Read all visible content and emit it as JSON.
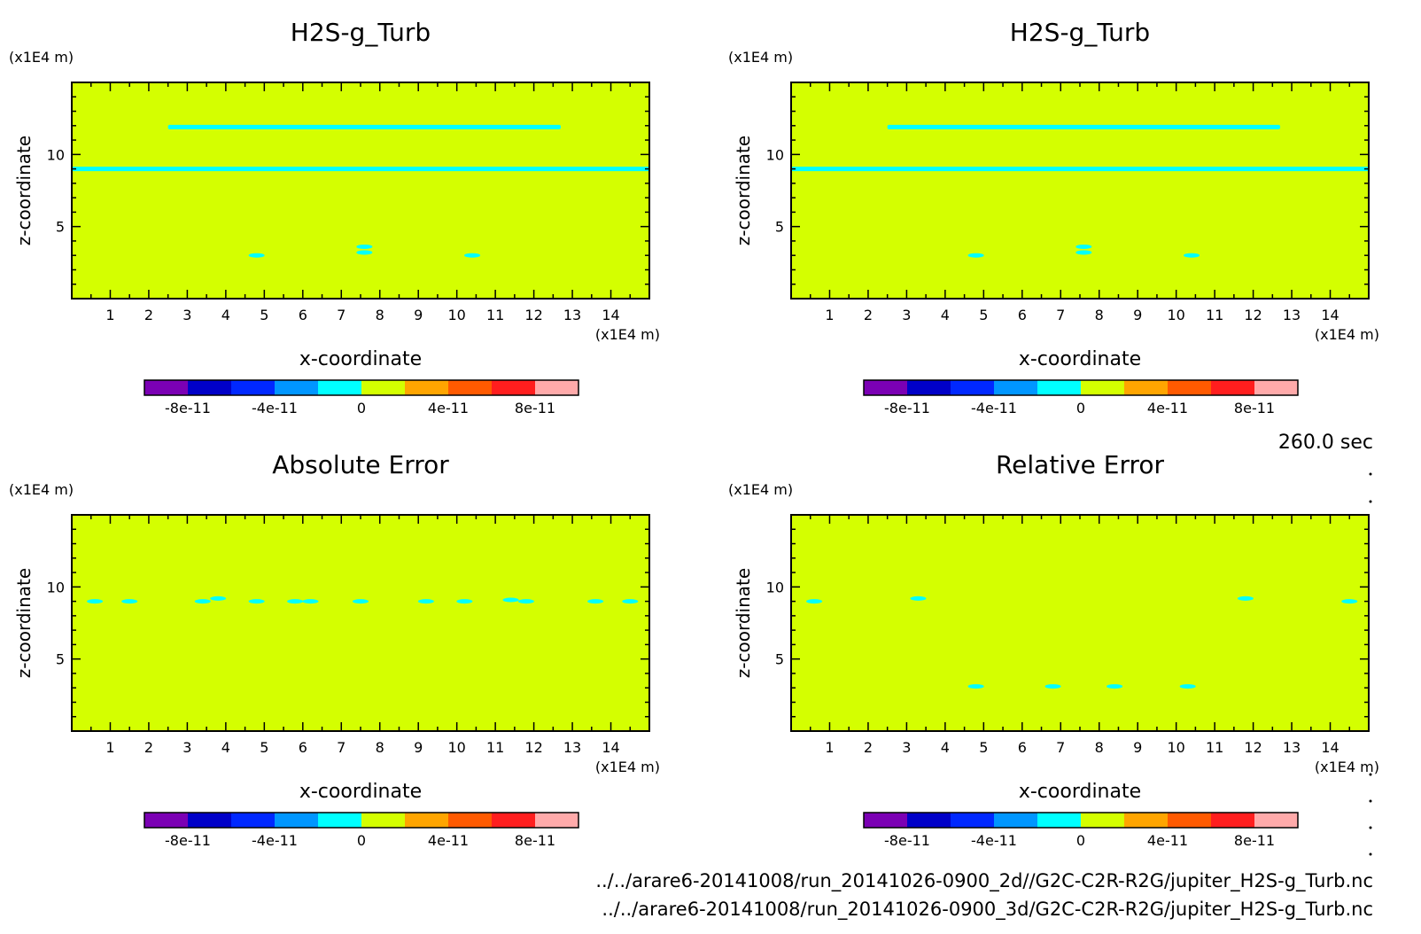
{
  "time_label": "260.0 sec",
  "footer": {
    "line1": "../../arare6-20141008/run_20141026-0900_2d//G2C-C2R-R2G/jupiter_H2S-g_Turb.nc",
    "line2": "../../arare6-20141008/run_20141026-0900_3d/G2C-C2R-R2G/jupiter_H2S-g_Turb.nc"
  },
  "colors": {
    "background_field": "#d4ff00",
    "contour": "#00ffff"
  },
  "chart_data": [
    {
      "type": "heatmap",
      "title": "H2S-g_Turb",
      "xlabel": "x-coordinate",
      "ylabel": "z-coordinate",
      "x_unit": "(x1E4 m)",
      "y_unit": "(x1E4 m)",
      "xlim": [
        0,
        15
      ],
      "ylim": [
        0,
        15
      ],
      "xticks": [
        1,
        2,
        3,
        4,
        5,
        6,
        7,
        8,
        9,
        10,
        11,
        12,
        13,
        14
      ],
      "yticks": [
        5,
        10
      ],
      "colorbar": {
        "colors": [
          "#7b00b4",
          "#0000c8",
          "#0028ff",
          "#0096ff",
          "#00ffff",
          "#d4ff00",
          "#ffa500",
          "#ff5a00",
          "#ff1e1e",
          "#ffaaaa"
        ],
        "tick_labels": [
          "-8e-11",
          "-4e-11",
          "0",
          "4e-11",
          "8e-11"
        ],
        "tick_values": [
          -8e-11,
          -4e-11,
          0,
          4e-11,
          8e-11
        ],
        "range": [
          -1e-10,
          1e-10
        ]
      },
      "features": [
        {
          "kind": "band",
          "x": [
            2.5,
            12.7
          ],
          "z": 11.9
        },
        {
          "kind": "band",
          "x": [
            0,
            15
          ],
          "z": 9.0
        },
        {
          "kind": "blob",
          "x": 4.8,
          "z": 3.0
        },
        {
          "kind": "blob",
          "x": 10.4,
          "z": 3.0
        },
        {
          "kind": "blob",
          "x": 7.6,
          "z": 3.2
        },
        {
          "kind": "blob",
          "x": 7.6,
          "z": 3.6
        }
      ]
    },
    {
      "type": "heatmap",
      "title": "H2S-g_Turb",
      "xlabel": "x-coordinate",
      "ylabel": "z-coordinate",
      "x_unit": "(x1E4 m)",
      "y_unit": "(x1E4 m)",
      "xlim": [
        0,
        15
      ],
      "ylim": [
        0,
        15
      ],
      "xticks": [
        1,
        2,
        3,
        4,
        5,
        6,
        7,
        8,
        9,
        10,
        11,
        12,
        13,
        14
      ],
      "yticks": [
        5,
        10
      ],
      "colorbar": {
        "colors": [
          "#7b00b4",
          "#0000c8",
          "#0028ff",
          "#0096ff",
          "#00ffff",
          "#d4ff00",
          "#ffa500",
          "#ff5a00",
          "#ff1e1e",
          "#ffaaaa"
        ],
        "tick_labels": [
          "-8e-11",
          "-4e-11",
          "0",
          "4e-11",
          "8e-11"
        ],
        "tick_values": [
          -8e-11,
          -4e-11,
          0,
          4e-11,
          8e-11
        ],
        "range": [
          -1e-10,
          1e-10
        ]
      },
      "features": [
        {
          "kind": "band",
          "x": [
            2.5,
            12.7
          ],
          "z": 11.9
        },
        {
          "kind": "band",
          "x": [
            0,
            15
          ],
          "z": 9.0
        },
        {
          "kind": "blob",
          "x": 4.8,
          "z": 3.0
        },
        {
          "kind": "blob",
          "x": 10.4,
          "z": 3.0
        },
        {
          "kind": "blob",
          "x": 7.6,
          "z": 3.2
        },
        {
          "kind": "blob",
          "x": 7.6,
          "z": 3.6
        }
      ]
    },
    {
      "type": "heatmap",
      "title": "Absolute Error",
      "xlabel": "x-coordinate",
      "ylabel": "z-coordinate",
      "x_unit": "(x1E4 m)",
      "y_unit": "(x1E4 m)",
      "xlim": [
        0,
        15
      ],
      "ylim": [
        0,
        15
      ],
      "xticks": [
        1,
        2,
        3,
        4,
        5,
        6,
        7,
        8,
        9,
        10,
        11,
        12,
        13,
        14
      ],
      "yticks": [
        5,
        10
      ],
      "colorbar": {
        "colors": [
          "#7b00b4",
          "#0000c8",
          "#0028ff",
          "#0096ff",
          "#00ffff",
          "#d4ff00",
          "#ffa500",
          "#ff5a00",
          "#ff1e1e",
          "#ffaaaa"
        ],
        "tick_labels": [
          "-8e-11",
          "-4e-11",
          "0",
          "4e-11",
          "8e-11"
        ],
        "tick_values": [
          -8e-11,
          -4e-11,
          0,
          4e-11,
          8e-11
        ],
        "range": [
          -1e-10,
          1e-10
        ]
      },
      "features": [
        {
          "kind": "blob",
          "x": 0.6,
          "z": 9.0
        },
        {
          "kind": "blob",
          "x": 1.5,
          "z": 9.0
        },
        {
          "kind": "blob",
          "x": 3.4,
          "z": 9.0
        },
        {
          "kind": "blob",
          "x": 3.8,
          "z": 9.2
        },
        {
          "kind": "blob",
          "x": 4.8,
          "z": 9.0
        },
        {
          "kind": "blob",
          "x": 5.8,
          "z": 9.0
        },
        {
          "kind": "blob",
          "x": 6.2,
          "z": 9.0
        },
        {
          "kind": "blob",
          "x": 7.5,
          "z": 9.0
        },
        {
          "kind": "blob",
          "x": 9.2,
          "z": 9.0
        },
        {
          "kind": "blob",
          "x": 10.2,
          "z": 9.0
        },
        {
          "kind": "blob",
          "x": 11.4,
          "z": 9.1
        },
        {
          "kind": "blob",
          "x": 11.8,
          "z": 9.0
        },
        {
          "kind": "blob",
          "x": 13.6,
          "z": 9.0
        },
        {
          "kind": "blob",
          "x": 14.5,
          "z": 9.0
        }
      ]
    },
    {
      "type": "heatmap",
      "title": "Relative Error",
      "xlabel": "x-coordinate",
      "ylabel": "z-coordinate",
      "x_unit": "(x1E4 m)",
      "y_unit": "(x1E4 m)",
      "xlim": [
        0,
        15
      ],
      "ylim": [
        0,
        15
      ],
      "xticks": [
        1,
        2,
        3,
        4,
        5,
        6,
        7,
        8,
        9,
        10,
        11,
        12,
        13,
        14
      ],
      "yticks": [
        5,
        10
      ],
      "colorbar": {
        "colors": [
          "#7b00b4",
          "#0000c8",
          "#0028ff",
          "#0096ff",
          "#00ffff",
          "#d4ff00",
          "#ffa500",
          "#ff5a00",
          "#ff1e1e",
          "#ffaaaa"
        ],
        "tick_labels": [
          "-8e-11",
          "-4e-11",
          "0",
          "4e-11",
          "8e-11"
        ],
        "tick_values": [
          -8e-11,
          -4e-11,
          0,
          4e-11,
          8e-11
        ],
        "range": [
          -1e-10,
          1e-10
        ]
      },
      "features": [
        {
          "kind": "blob",
          "x": 0.6,
          "z": 9.0
        },
        {
          "kind": "blob",
          "x": 3.3,
          "z": 9.2
        },
        {
          "kind": "blob",
          "x": 11.8,
          "z": 9.2
        },
        {
          "kind": "blob",
          "x": 14.5,
          "z": 9.0
        },
        {
          "kind": "blob",
          "x": 4.8,
          "z": 3.1
        },
        {
          "kind": "blob",
          "x": 6.8,
          "z": 3.1
        },
        {
          "kind": "blob",
          "x": 8.4,
          "z": 3.1
        },
        {
          "kind": "blob",
          "x": 10.3,
          "z": 3.1
        }
      ]
    }
  ]
}
